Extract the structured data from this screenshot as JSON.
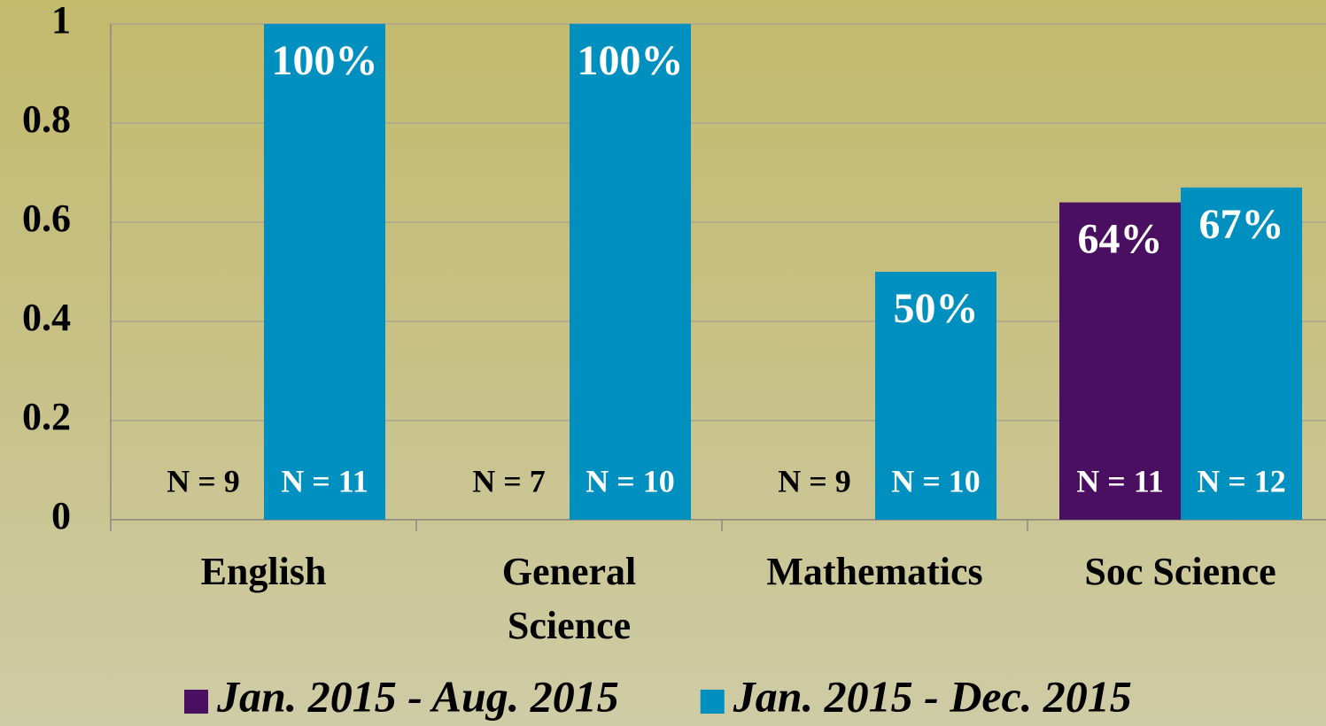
{
  "chart_data": {
    "type": "bar",
    "categories": [
      "English",
      "General Science",
      "Mathematics",
      "Soc Science"
    ],
    "series": [
      {
        "name": "Jan. 2015 - Aug. 2015",
        "color": "#4b0f62",
        "values": [
          0,
          0,
          0,
          0.64
        ],
        "value_labels": [
          null,
          null,
          null,
          "64%"
        ],
        "n_labels": [
          "N = 9",
          "N = 7",
          "N = 9",
          "N = 11"
        ]
      },
      {
        "name": "Jan. 2015 - Dec. 2015",
        "color": "#0090c0",
        "values": [
          1,
          1,
          0.5,
          0.67
        ],
        "value_labels": [
          "100%",
          "100%",
          "50%",
          "67%"
        ],
        "n_labels": [
          "N = 11",
          "N = 10",
          "N = 10",
          "N = 12"
        ]
      }
    ],
    "ylim": [
      0,
      1
    ],
    "yticks": [
      0,
      0.2,
      0.4,
      0.6,
      0.8,
      1
    ],
    "grid": true,
    "legend": "bottom"
  }
}
